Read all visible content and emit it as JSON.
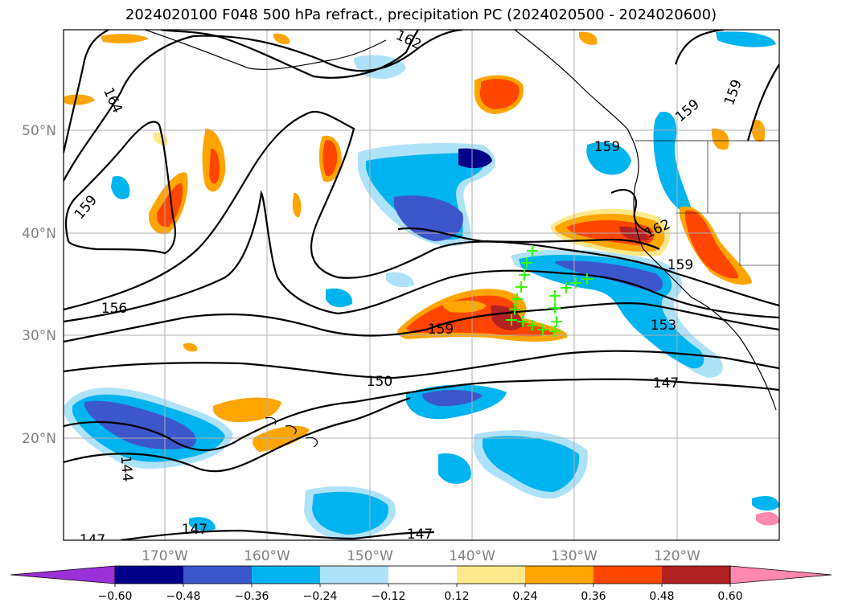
{
  "title": "2024020100 F048 500 hPa refract., precipitation PC (2024020500 - 2024020600)",
  "lat_ticks": [
    "50°N",
    "40°N",
    "30°N",
    "20°N"
  ],
  "lon_ticks": [
    "170°W",
    "160°W",
    "150°W",
    "140°W",
    "130°W",
    "120°W"
  ],
  "colorbar": {
    "ticks": [
      "−0.60",
      "−0.48",
      "−0.36",
      "−0.24",
      "−0.12",
      "0.12",
      "0.24",
      "0.36",
      "0.48",
      "0.60"
    ],
    "colors": [
      "#9b30d9",
      "#00008b",
      "#3c56cc",
      "#00b4f0",
      "#aee2f8",
      "#ffffff",
      "#fde98c",
      "#ffa500",
      "#ff4500",
      "#b22222",
      "#ff88b0"
    ]
  },
  "contour_labels": [
    "162",
    "164",
    "159",
    "159",
    "159",
    "159",
    "162",
    "159",
    "156",
    "159",
    "153",
    "150",
    "147",
    "144",
    "147",
    "147",
    "147"
  ],
  "marker_color": "#33ff00"
}
